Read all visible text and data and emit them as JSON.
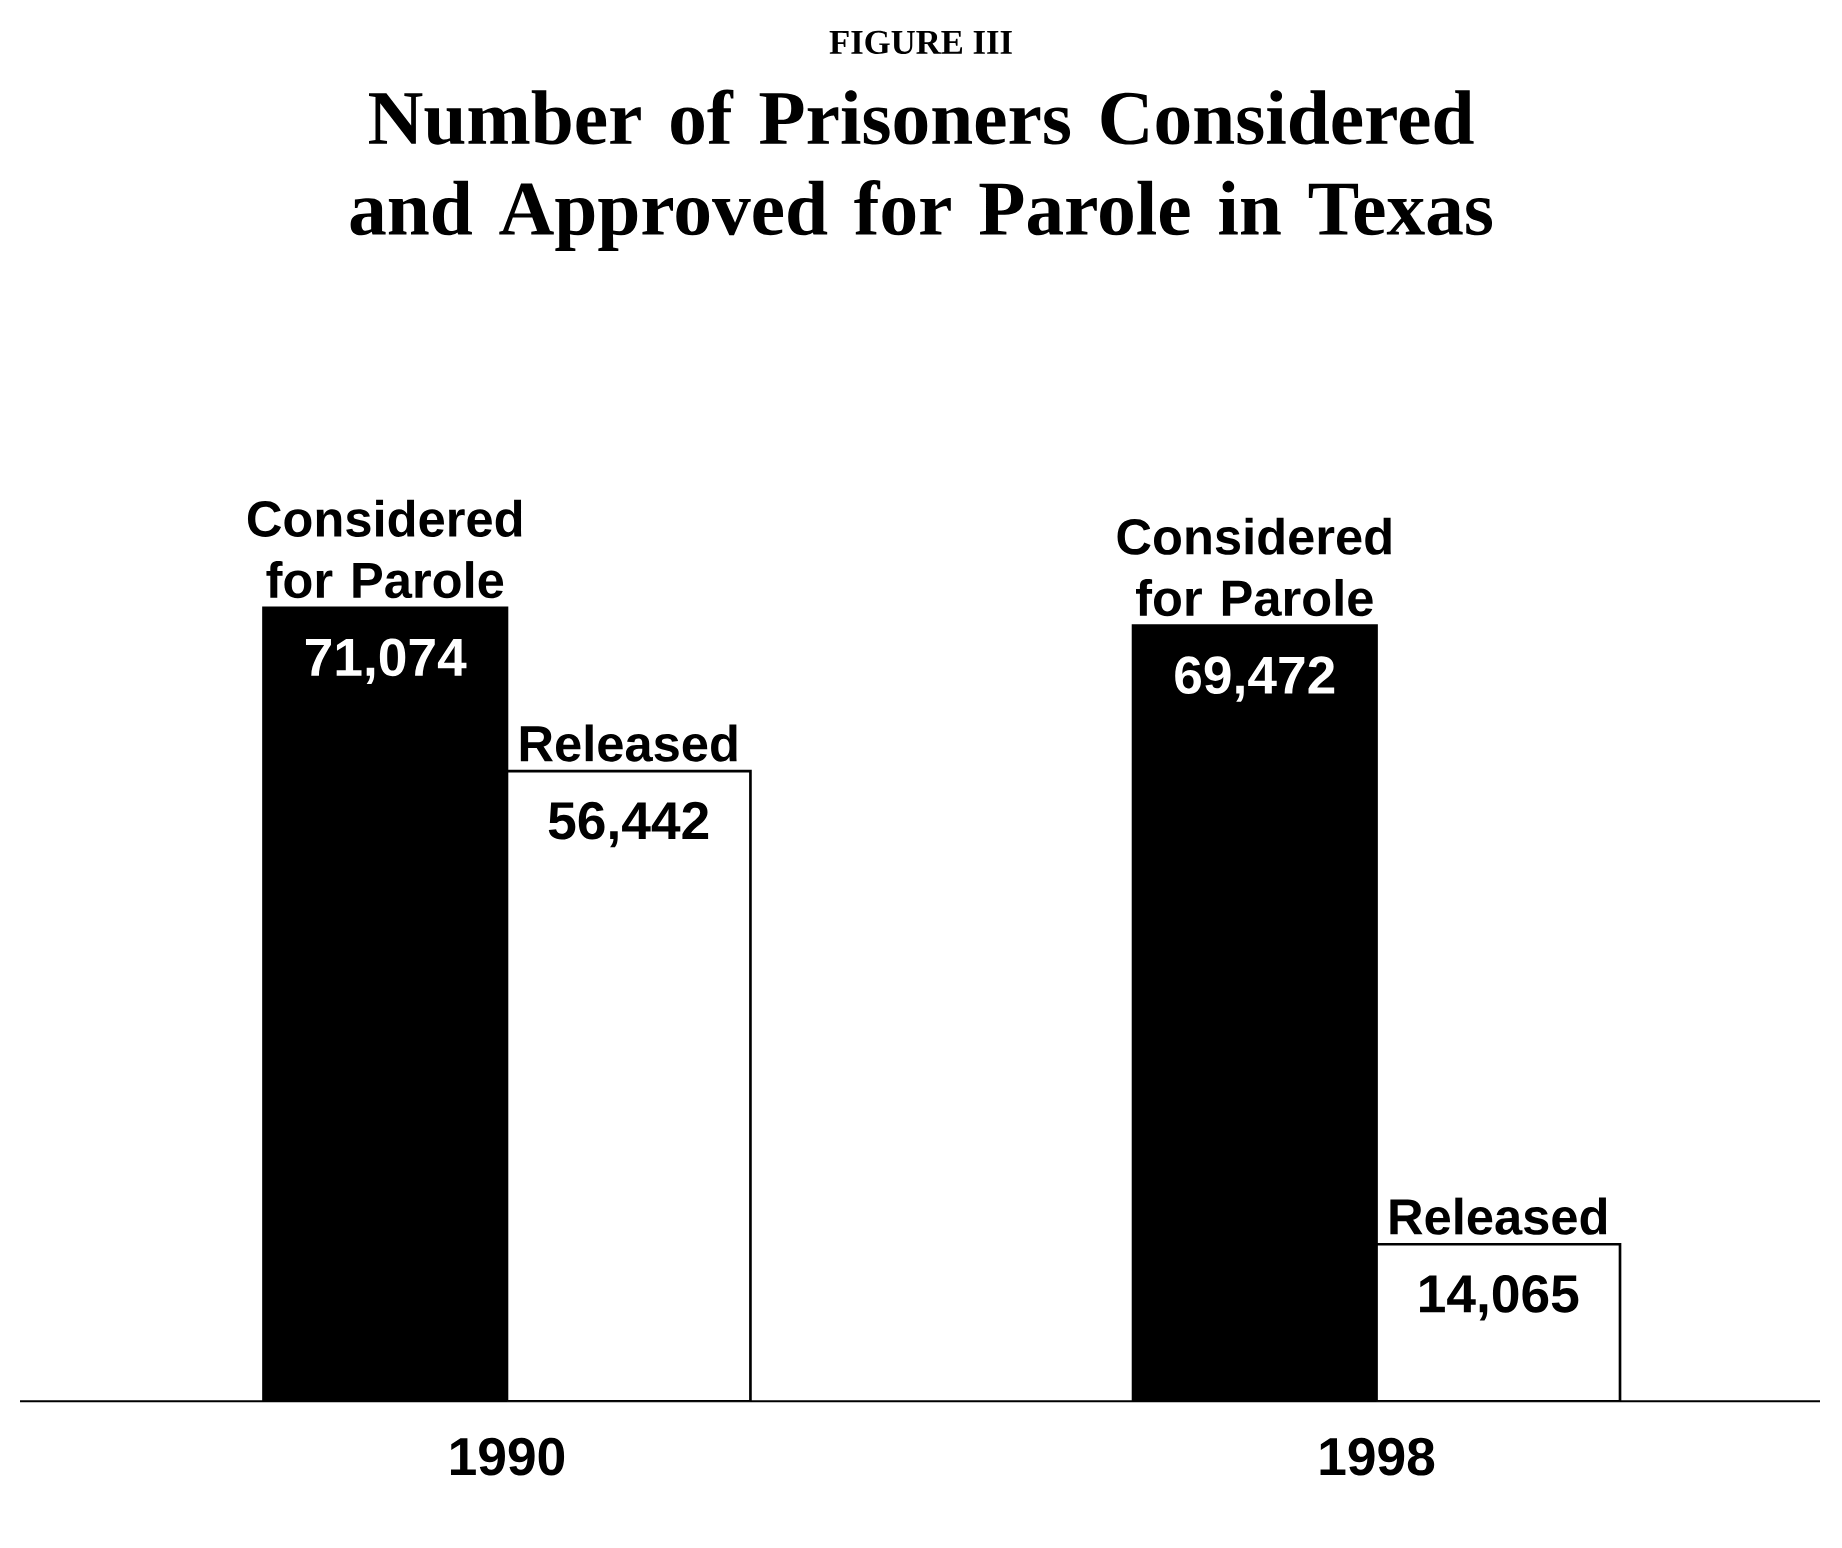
{
  "chart_data": {
    "type": "bar",
    "title": "Number of Prisoners Considered and Approved for Parole in Texas",
    "annotations": [
      "FIGURE III"
    ],
    "categories": [
      "1990",
      "1998"
    ],
    "series": [
      {
        "name": "Considered for Parole",
        "color": "#000000",
        "values": [
          71074,
          69472
        ],
        "value_labels": [
          "71,074",
          "69,472"
        ]
      },
      {
        "name": "Released",
        "color": "#ffffff",
        "values": [
          56442,
          14065
        ],
        "value_labels": [
          "56,442",
          "14,065"
        ]
      }
    ],
    "legend": false
  }
}
